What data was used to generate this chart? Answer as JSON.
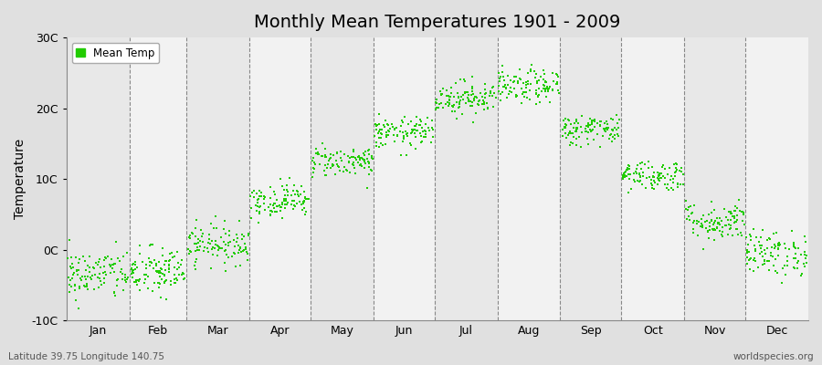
{
  "title": "Monthly Mean Temperatures 1901 - 2009",
  "ylabel": "Temperature",
  "ylim": [
    -10,
    30
  ],
  "ytick_labels": [
    "-10C",
    "0C",
    "10C",
    "20C",
    "30C"
  ],
  "ytick_values": [
    -10,
    0,
    10,
    20,
    30
  ],
  "month_labels": [
    "Jan",
    "Feb",
    "Mar",
    "Apr",
    "May",
    "Jun",
    "Jul",
    "Aug",
    "Sep",
    "Oct",
    "Nov",
    "Dec"
  ],
  "month_days": [
    31,
    28,
    31,
    30,
    31,
    30,
    31,
    31,
    30,
    31,
    30,
    31
  ],
  "dot_color": "#22CC00",
  "bg_color_even": "#E8E8E8",
  "bg_color_odd": "#F2F2F2",
  "fig_bg": "#E0E0E0",
  "n_years": 109,
  "monthly_means": [
    -3.5,
    -3.2,
    0.8,
    7.0,
    12.5,
    16.5,
    21.5,
    23.0,
    17.0,
    10.5,
    4.0,
    -0.5
  ],
  "monthly_stds": [
    1.8,
    1.8,
    1.4,
    1.2,
    1.1,
    1.1,
    1.2,
    1.2,
    1.1,
    1.1,
    1.4,
    1.6
  ],
  "footnote_left": "Latitude 39.75 Longitude 140.75",
  "footnote_right": "worldspecies.org",
  "legend_label": "Mean Temp",
  "title_fontsize": 14,
  "tick_fontsize": 9,
  "ylabel_fontsize": 10
}
